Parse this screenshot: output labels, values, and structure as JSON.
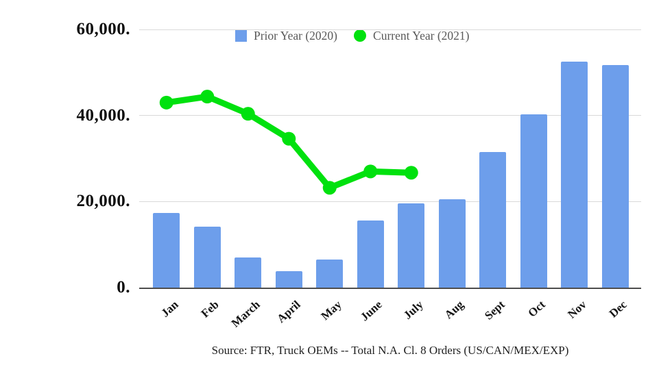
{
  "chart_data": {
    "type": "bar",
    "subtype": "combo-bar-line",
    "title": "",
    "categories": [
      "Jan",
      "Feb",
      "March",
      "April",
      "May",
      "June",
      "July",
      "Aug",
      "Sept",
      "Oct",
      "Nov",
      "Dec"
    ],
    "series": [
      {
        "name": "Prior Year (2020)",
        "type": "bar",
        "marker": "square",
        "color": "#6d9eeb",
        "values": [
          17400,
          14100,
          7000,
          3900,
          6500,
          15600,
          19600,
          20600,
          31500,
          40200,
          52500,
          51800
        ]
      },
      {
        "name": "Current Year (2021)",
        "type": "line",
        "marker": "circle",
        "color": "#00e10e",
        "values": [
          43000,
          44400,
          40400,
          34600,
          23200,
          27000,
          26700,
          null,
          null,
          null,
          null,
          null
        ]
      }
    ],
    "ylim": [
      0,
      60000
    ],
    "yticks": [
      {
        "value": 0,
        "label": "0."
      },
      {
        "value": 20000,
        "label": "20,000."
      },
      {
        "value": 40000,
        "label": "40,000."
      },
      {
        "value": 60000,
        "label": "60,000."
      }
    ],
    "grid": true,
    "legend_position": "top-center",
    "xlabel": "",
    "ylabel": ""
  },
  "source_note": "Source: FTR, Truck OEMs -- Total N.A. Cl. 8 Orders (US/CAN/MEX/EXP)"
}
